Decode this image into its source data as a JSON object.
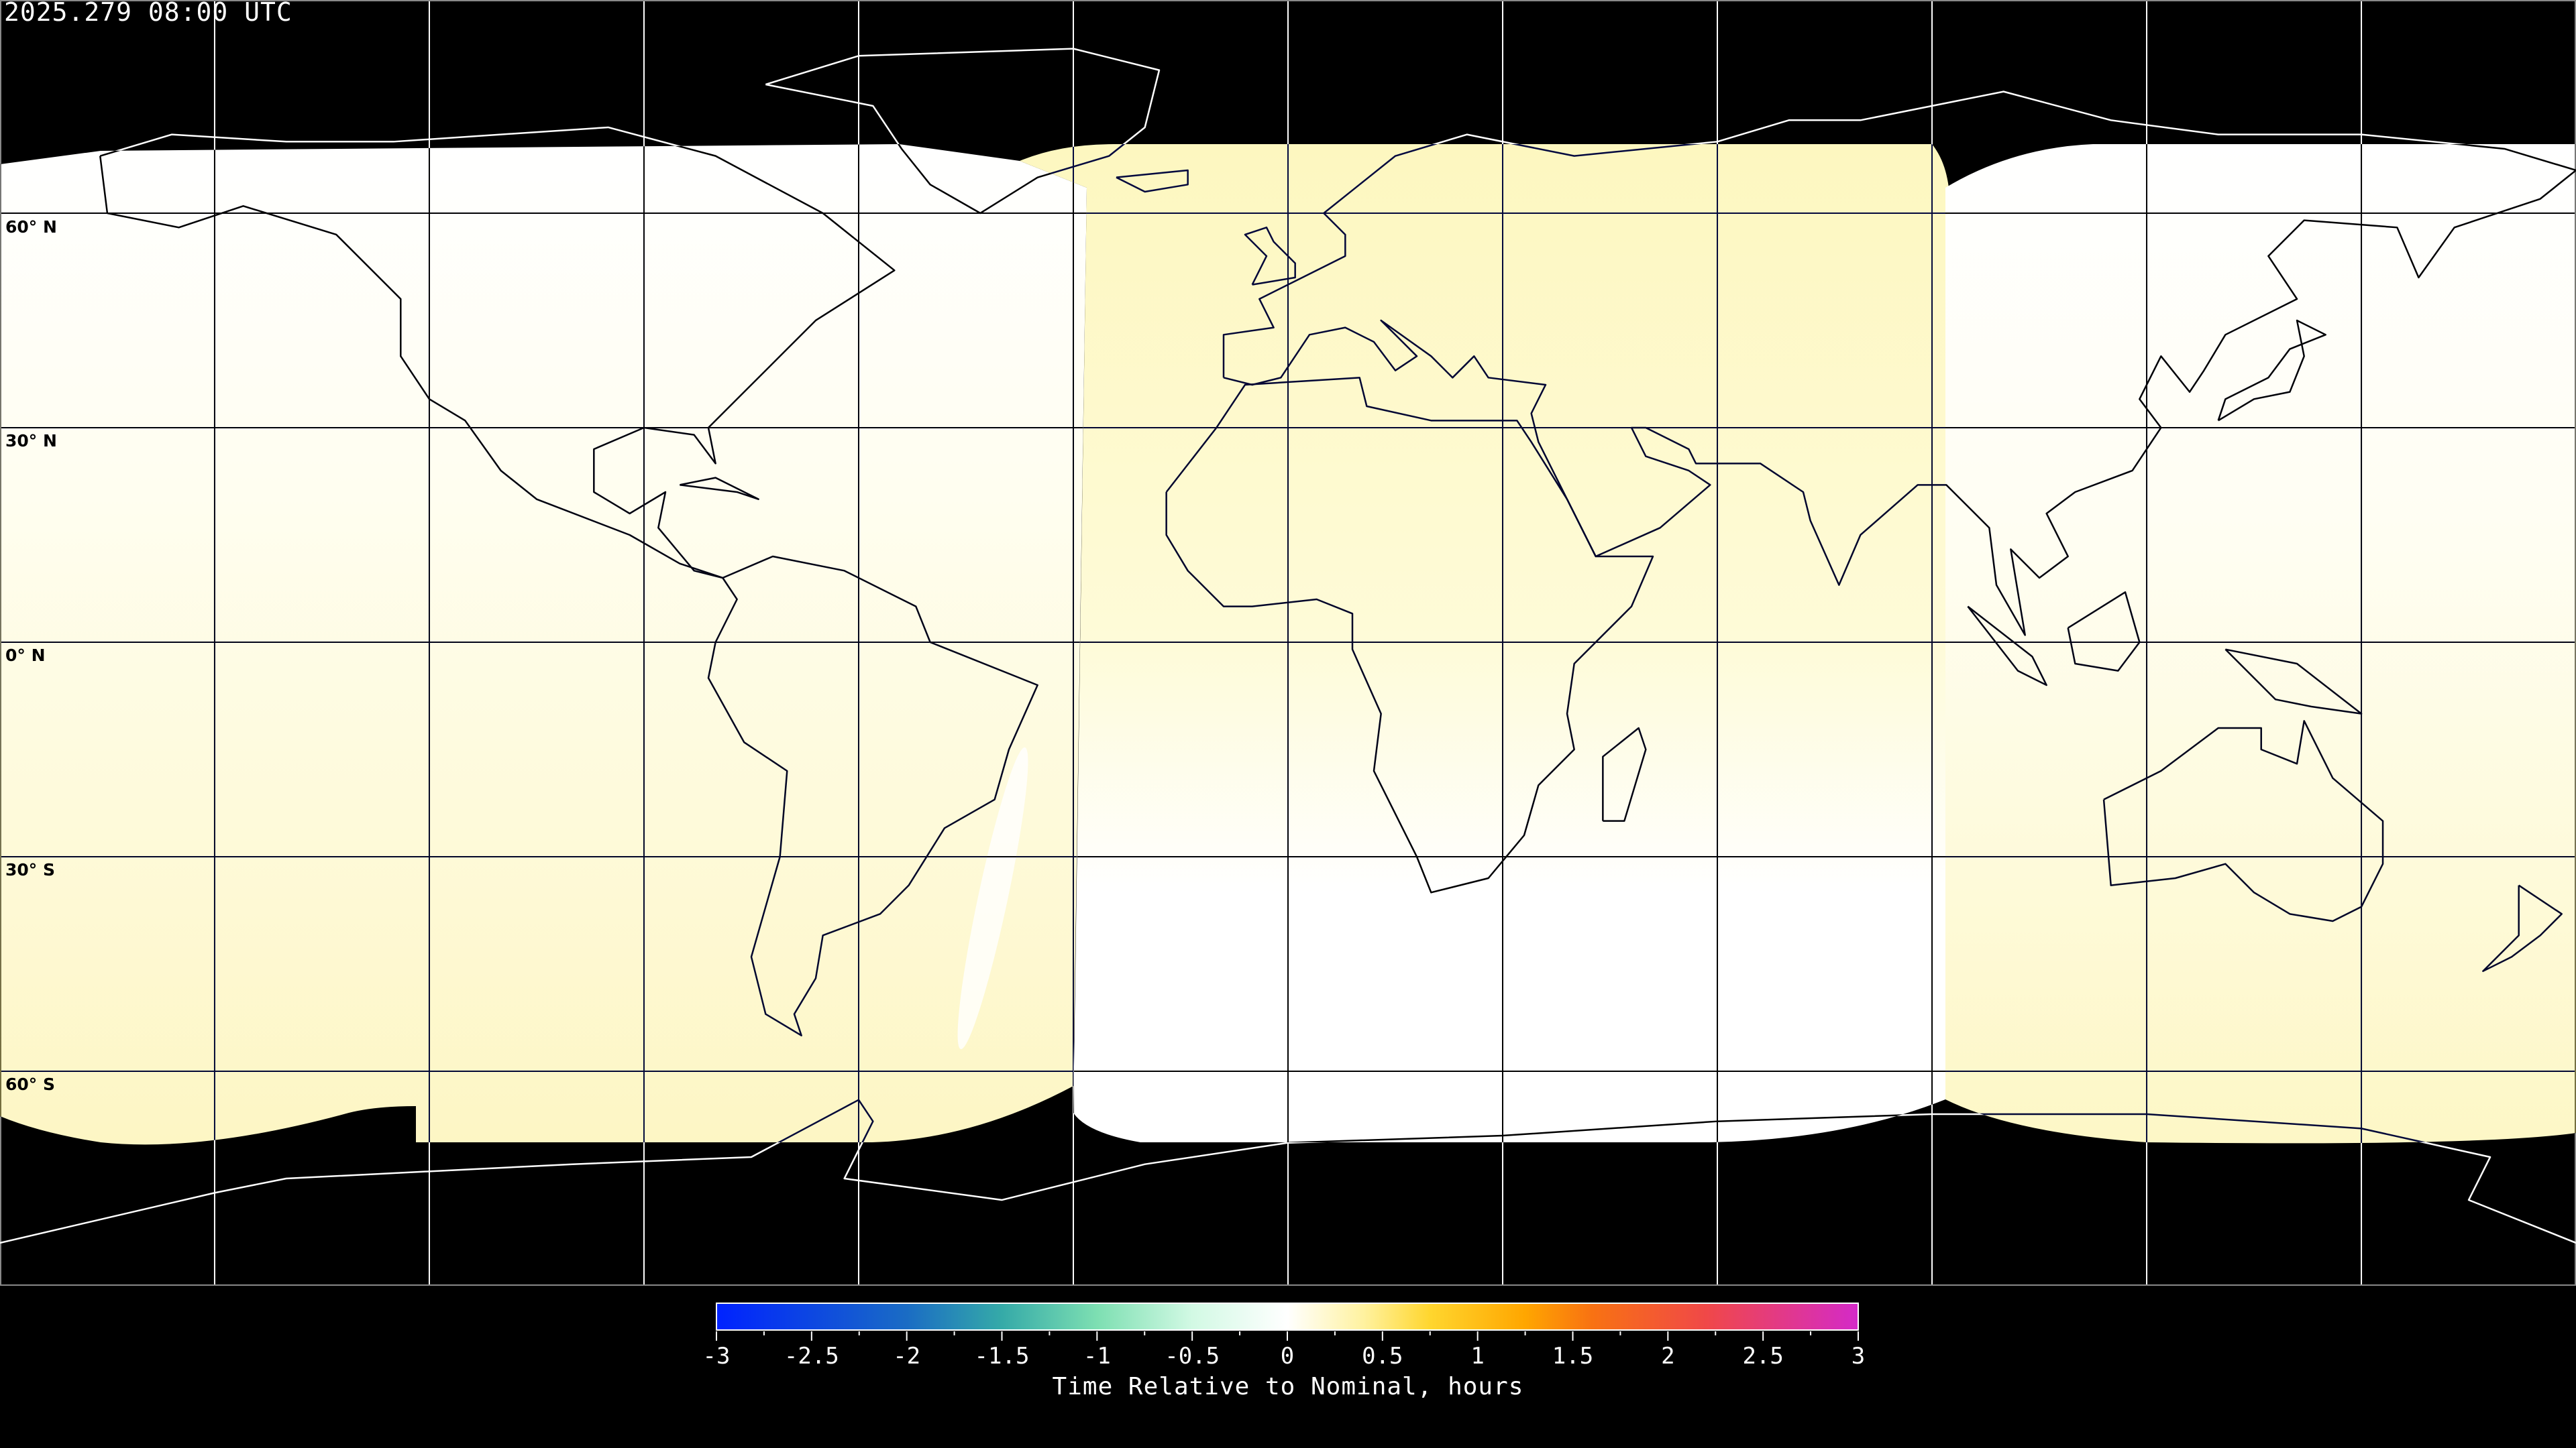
{
  "title": "2025.279 08:00 UTC",
  "map": {
    "projection": "equirectangular",
    "lat_gridlines": [
      60,
      30,
      0,
      -30,
      -60
    ],
    "lon_gridline_spacing_deg": 30,
    "lat_labels": [
      "60° N",
      "30° N",
      "0° N",
      "30° S",
      "60° S"
    ],
    "colors": {
      "background": "#000000",
      "near_zero": "#ffffff",
      "slightly_positive": "#fefac8"
    }
  },
  "colorbar": {
    "min": -3,
    "max": 3,
    "tick_labels": [
      "-3",
      "-2.5",
      "-2",
      "-1.5",
      "-1",
      "-0.5",
      "0",
      "0.5",
      "1",
      "1.5",
      "2",
      "2.5",
      "3"
    ],
    "label": "Time Relative to Nominal, hours",
    "stops": [
      {
        "value": -3,
        "color": "#0022ff"
      },
      {
        "value": -2,
        "color": "#1a6cc4"
      },
      {
        "value": -1.5,
        "color": "#35aaa8"
      },
      {
        "value": -1,
        "color": "#7ddfb2"
      },
      {
        "value": -0.5,
        "color": "#d2f9e4"
      },
      {
        "value": 0,
        "color": "#ffffff"
      },
      {
        "value": 0.4,
        "color": "#fff2a0"
      },
      {
        "value": 0.75,
        "color": "#ffd62e"
      },
      {
        "value": 1.25,
        "color": "#ffa600"
      },
      {
        "value": 1.6,
        "color": "#f87212"
      },
      {
        "value": 2.2,
        "color": "#f04848"
      },
      {
        "value": 3,
        "color": "#d42ac8"
      }
    ]
  }
}
